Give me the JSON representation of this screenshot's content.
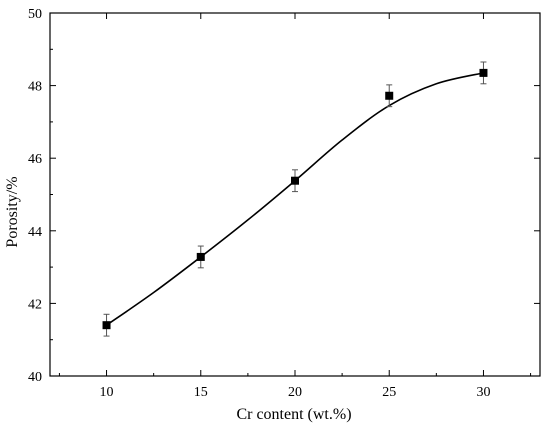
{
  "chart_data": {
    "type": "scatter",
    "title": "",
    "xlabel": "Cr content (wt.%)",
    "ylabel": "Porosity/%",
    "xlim": [
      7,
      33
    ],
    "ylim": [
      40,
      50
    ],
    "xticks": [
      10,
      15,
      20,
      25,
      30
    ],
    "yticks": [
      40,
      42,
      44,
      46,
      48,
      50
    ],
    "grid": false,
    "legend": "none",
    "series": [
      {
        "x": [
          10,
          15,
          20,
          25,
          30
        ],
        "y": [
          41.4,
          43.28,
          45.38,
          47.72,
          48.35
        ],
        "error": [
          0.3,
          0.3,
          0.3,
          0.3,
          0.3
        ],
        "marker": "filled-square",
        "color": "#000000",
        "fit_curve": [
          [
            10,
            41.4
          ],
          [
            12.5,
            42.3
          ],
          [
            15,
            43.28
          ],
          [
            17.5,
            44.3
          ],
          [
            20,
            45.38
          ],
          [
            22.5,
            46.5
          ],
          [
            25,
            47.45
          ],
          [
            27.5,
            48.05
          ],
          [
            30,
            48.35
          ]
        ]
      }
    ]
  }
}
